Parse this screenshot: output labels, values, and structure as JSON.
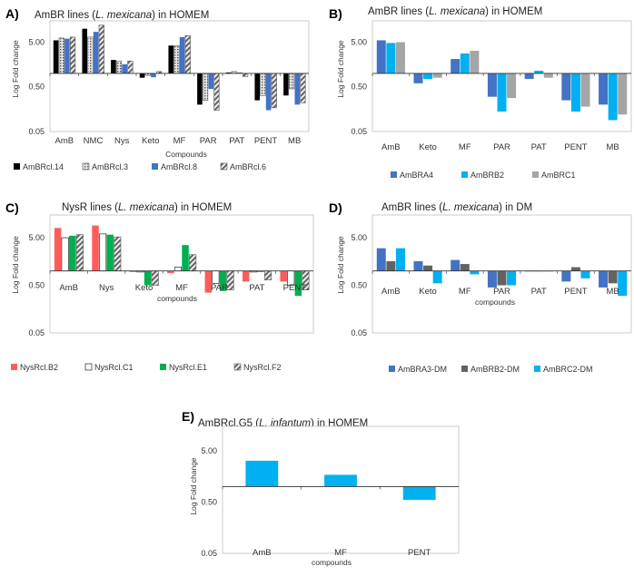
{
  "chart_data": [
    {
      "type": "bar",
      "panel_label": "A)",
      "title_prefix": "AmBR lines (",
      "title_italic": "L. mexicana",
      "title_suffix": ") in HOMEM",
      "ylabel": "Log Fold change",
      "xlabel": "Compounds",
      "yscale": "log",
      "ylim": [
        0.05,
        15
      ],
      "yticks": [
        0.05,
        0.5,
        5
      ],
      "ytick_labels": [
        "0.05",
        "0.50",
        "5.00"
      ],
      "baseline": 1,
      "categories": [
        "AmB",
        "NMC",
        "Nys",
        "Keto",
        "MF",
        "PAR",
        "PAT",
        "PENT",
        "MB"
      ],
      "legend_position": "bottom",
      "series": [
        {
          "name": "AmBRcl.14",
          "color": "#000000",
          "pattern": "solid",
          "values": [
            5.5,
            10,
            2.0,
            0.8,
            4.2,
            0.2,
            1.05,
            0.25,
            0.32
          ]
        },
        {
          "name": "AmBRcl.3",
          "color": "#aaaaaa",
          "pattern": "dots",
          "values": [
            6.2,
            6.5,
            1.9,
            0.9,
            4.2,
            0.25,
            1.1,
            0.32,
            0.45
          ]
        },
        {
          "name": "AmBRcl.8",
          "color": "#4472c4",
          "pattern": "solid",
          "values": [
            6.0,
            8.5,
            1.6,
            0.82,
            6.5,
            0.45,
            1.05,
            0.15,
            0.2
          ]
        },
        {
          "name": "AmBRcl.6",
          "color": "#7f7f7f",
          "pattern": "stripes",
          "values": [
            6.5,
            12,
            1.9,
            1.1,
            7.0,
            0.15,
            0.85,
            0.17,
            0.22
          ]
        }
      ]
    },
    {
      "type": "bar",
      "panel_label": "B)",
      "title_prefix": "AmBR lines (",
      "title_italic": "L. mexicana",
      "title_suffix": ") in HOMEM",
      "ylabel": "Log Fold change",
      "xlabel": "",
      "yscale": "log",
      "ylim": [
        0.05,
        15
      ],
      "yticks": [
        0.05,
        0.5,
        5
      ],
      "ytick_labels": [
        "0.05",
        "0.50",
        "5.00"
      ],
      "baseline": 1,
      "categories": [
        "AmB",
        "Keto",
        "MF",
        "PAR",
        "PAT",
        "PENT",
        "MB"
      ],
      "legend_position": "bottom",
      "series": [
        {
          "name": "AmBRA4",
          "color": "#4472c4",
          "pattern": "solid",
          "values": [
            5.5,
            0.6,
            2.1,
            0.3,
            0.75,
            0.25,
            0.2
          ]
        },
        {
          "name": "AmBRB2",
          "color": "#00b0f0",
          "pattern": "solid",
          "values": [
            4.8,
            0.75,
            2.8,
            0.14,
            1.15,
            0.14,
            0.09
          ]
        },
        {
          "name": "AmBRC1",
          "color": "#a5a5a5",
          "pattern": "solid",
          "values": [
            5.0,
            0.8,
            3.2,
            0.28,
            0.8,
            0.18,
            0.12
          ]
        }
      ]
    },
    {
      "type": "bar",
      "panel_label": "C)",
      "title_prefix": "NysR lines (",
      "title_italic": "L. mexicana",
      "title_suffix": ") in HOMEM",
      "ylabel": "Log Fold change",
      "xlabel": "compounds",
      "yscale": "log",
      "ylim": [
        0.05,
        15
      ],
      "yticks": [
        0.05,
        0.5,
        5
      ],
      "ytick_labels": [
        "0.05",
        "0.50",
        "5.00"
      ],
      "baseline": 1,
      "categories": [
        "AmB",
        "Nys",
        "Keto",
        "MF",
        "PAR",
        "PAT",
        "PENT"
      ],
      "legend_position": "bottom",
      "series": [
        {
          "name": "NysRcl.B2",
          "color": "#ff5b5b",
          "pattern": "solid",
          "values": [
            8.0,
            9.0,
            0.95,
            0.9,
            0.35,
            0.6,
            0.6
          ]
        },
        {
          "name": "NysRcl.C1",
          "color": "#ffffff",
          "pattern": "outline",
          "values": [
            5.0,
            6.0,
            0.95,
            1.2,
            0.55,
            0.95,
            0.5
          ]
        },
        {
          "name": "NysRcl.E1",
          "color": "#00b050",
          "pattern": "solid",
          "values": [
            5.5,
            5.8,
            0.5,
            3.5,
            0.38,
            0.95,
            0.3
          ]
        },
        {
          "name": "NysRcl.F2",
          "color": "#7f7f7f",
          "pattern": "stripes",
          "values": [
            5.8,
            5.2,
            0.5,
            2.2,
            0.4,
            0.65,
            0.4
          ]
        }
      ]
    },
    {
      "type": "bar",
      "panel_label": "D)",
      "title_prefix": "AmBR lines (",
      "title_italic": "L. mexicana",
      "title_suffix": ") in DM",
      "ylabel": "Log Fold change",
      "xlabel": "compounds",
      "yscale": "log",
      "ylim": [
        0.05,
        15
      ],
      "yticks": [
        0.05,
        0.5,
        5
      ],
      "ytick_labels": [
        "0.05",
        "0.50",
        "5.00"
      ],
      "baseline": 1,
      "categories": [
        "AmB",
        "Keto",
        "MF",
        "PAR",
        "PAT",
        "PENT",
        "MB"
      ],
      "legend_position": "bottom",
      "series": [
        {
          "name": "AmBRA3-DM",
          "color": "#4472c4",
          "pattern": "solid",
          "values": [
            3.0,
            1.6,
            1.7,
            0.45,
            1.0,
            0.6,
            0.45
          ]
        },
        {
          "name": "AmBRB2-DM",
          "color": "#636363",
          "pattern": "solid",
          "values": [
            1.6,
            1.3,
            1.4,
            0.5,
            1.0,
            1.2,
            0.55
          ]
        },
        {
          "name": "AmBRC2-DM",
          "color": "#00b0f0",
          "pattern": "solid",
          "values": [
            3.0,
            0.55,
            0.85,
            0.5,
            1.0,
            0.7,
            0.3
          ]
        }
      ]
    },
    {
      "type": "bar",
      "panel_label": "E)",
      "title_prefix": "AmBRcl.G5 (",
      "title_italic": "L. infantum",
      "title_suffix": ") in HOMEM",
      "ylabel": "Log Fold change",
      "xlabel": "compounds",
      "yscale": "log",
      "ylim": [
        0.05,
        15
      ],
      "yticks": [
        0.05,
        0.5,
        5
      ],
      "ytick_labels": [
        "0.05",
        "0.50",
        "5.00"
      ],
      "baseline": 1,
      "categories": [
        "AmB",
        "MF",
        "PENT"
      ],
      "legend_position": "none",
      "series": [
        {
          "name": "AmBRcl.G5",
          "color": "#00b0f0",
          "pattern": "solid",
          "values": [
            3.2,
            1.7,
            0.55
          ]
        }
      ]
    }
  ]
}
